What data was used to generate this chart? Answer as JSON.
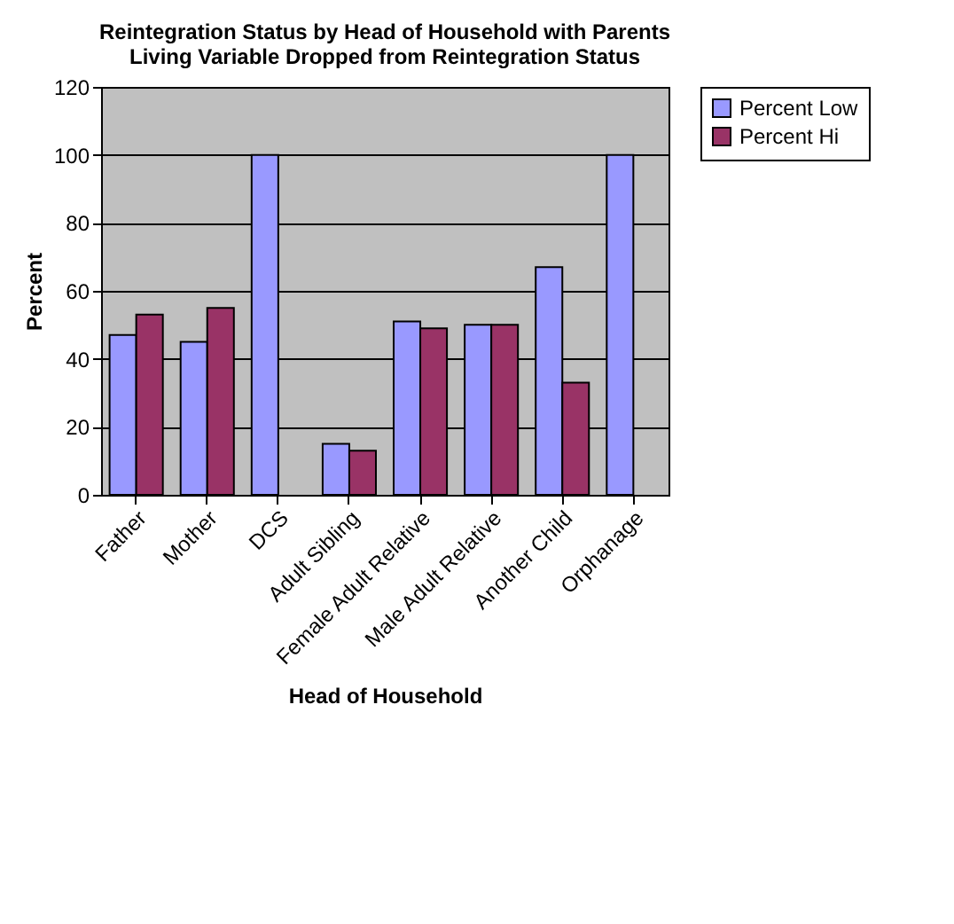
{
  "chart_data": {
    "type": "bar",
    "title": "Reintegration Status by Head of Household with Parents\nLiving Variable Dropped from Reintegration Status",
    "xlabel": "Head of Household",
    "ylabel": "Percent",
    "categories": [
      "Father",
      "Mother",
      "DCS",
      "Adult Sibling",
      "Female Adult Relative",
      "Male Adult Relative",
      "Another Child",
      "Orphanage"
    ],
    "series": [
      {
        "name": "Percent Low",
        "color": "#9999ff",
        "values": [
          47,
          45,
          100,
          15,
          51,
          50,
          67,
          100
        ]
      },
      {
        "name": "Percent Hi",
        "color": "#993366",
        "values": [
          53,
          55,
          null,
          13,
          49,
          50,
          33,
          null
        ]
      }
    ],
    "ylim": [
      0,
      120
    ],
    "yticks": [
      0,
      20,
      40,
      60,
      80,
      100,
      120
    ],
    "grid": "y",
    "legend": "right"
  }
}
